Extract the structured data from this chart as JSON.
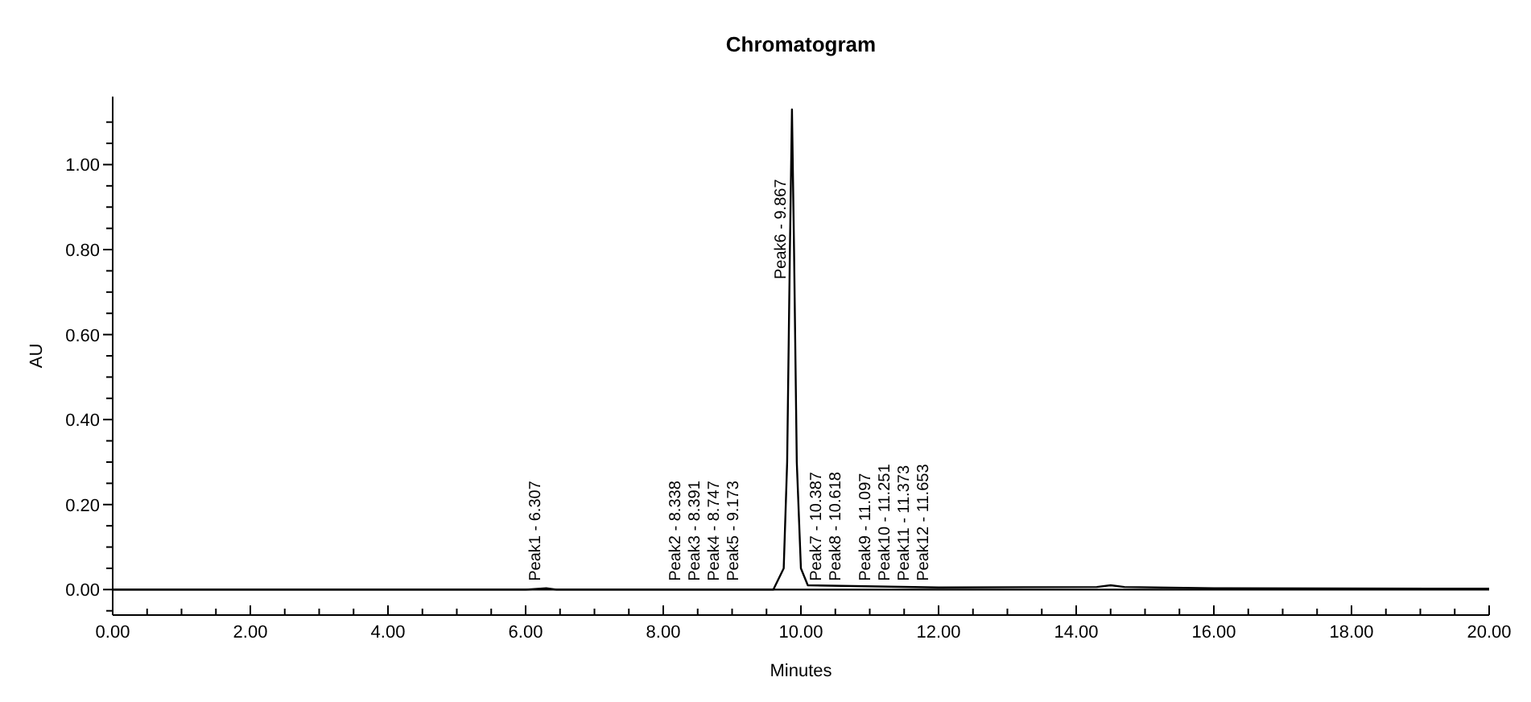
{
  "chart_data": {
    "type": "line",
    "title": "Chromatogram",
    "xlabel": "Minutes",
    "ylabel": "AU",
    "xlim": [
      0,
      20
    ],
    "ylim": [
      -0.06,
      1.16
    ],
    "xticks": [
      {
        "value": 0,
        "label": "0.00"
      },
      {
        "value": 0.5,
        "label": null
      },
      {
        "value": 1,
        "label": null
      },
      {
        "value": 1.5,
        "label": null
      },
      {
        "value": 2,
        "label": "2.00"
      },
      {
        "value": 2.5,
        "label": null
      },
      {
        "value": 3,
        "label": null
      },
      {
        "value": 3.5,
        "label": null
      },
      {
        "value": 4,
        "label": "4.00"
      },
      {
        "value": 4.5,
        "label": null
      },
      {
        "value": 5,
        "label": null
      },
      {
        "value": 5.5,
        "label": null
      },
      {
        "value": 6,
        "label": "6.00"
      },
      {
        "value": 6.5,
        "label": null
      },
      {
        "value": 7,
        "label": null
      },
      {
        "value": 7.5,
        "label": null
      },
      {
        "value": 8,
        "label": "8.00"
      },
      {
        "value": 8.5,
        "label": null
      },
      {
        "value": 9,
        "label": null
      },
      {
        "value": 9.5,
        "label": null
      },
      {
        "value": 10,
        "label": "10.00"
      },
      {
        "value": 10.5,
        "label": null
      },
      {
        "value": 11,
        "label": null
      },
      {
        "value": 11.5,
        "label": null
      },
      {
        "value": 12,
        "label": "12.00"
      },
      {
        "value": 12.5,
        "label": null
      },
      {
        "value": 13,
        "label": null
      },
      {
        "value": 13.5,
        "label": null
      },
      {
        "value": 14,
        "label": "14.00"
      },
      {
        "value": 14.5,
        "label": null
      },
      {
        "value": 15,
        "label": null
      },
      {
        "value": 15.5,
        "label": null
      },
      {
        "value": 16,
        "label": "16.00"
      },
      {
        "value": 16.5,
        "label": null
      },
      {
        "value": 17,
        "label": null
      },
      {
        "value": 17.5,
        "label": null
      },
      {
        "value": 18,
        "label": "18.00"
      },
      {
        "value": 18.5,
        "label": null
      },
      {
        "value": 19,
        "label": null
      },
      {
        "value": 19.5,
        "label": null
      },
      {
        "value": 20,
        "label": "20.00"
      }
    ],
    "yticks": [
      {
        "value": -0.05,
        "label": null
      },
      {
        "value": 0,
        "label": "0.00"
      },
      {
        "value": 0.05,
        "label": null
      },
      {
        "value": 0.1,
        "label": null
      },
      {
        "value": 0.15,
        "label": null
      },
      {
        "value": 0.2,
        "label": "0.20"
      },
      {
        "value": 0.25,
        "label": null
      },
      {
        "value": 0.3,
        "label": null
      },
      {
        "value": 0.35,
        "label": null
      },
      {
        "value": 0.4,
        "label": "0.40"
      },
      {
        "value": 0.45,
        "label": null
      },
      {
        "value": 0.5,
        "label": null
      },
      {
        "value": 0.55,
        "label": null
      },
      {
        "value": 0.6,
        "label": "0.60"
      },
      {
        "value": 0.65,
        "label": null
      },
      {
        "value": 0.7,
        "label": null
      },
      {
        "value": 0.75,
        "label": null
      },
      {
        "value": 0.8,
        "label": "0.80"
      },
      {
        "value": 0.85,
        "label": null
      },
      {
        "value": 0.9,
        "label": null
      },
      {
        "value": 0.95,
        "label": null
      },
      {
        "value": 1,
        "label": "1.00"
      },
      {
        "value": 1.05,
        "label": null
      },
      {
        "value": 1.1,
        "label": null
      }
    ],
    "x": [
      0,
      6.0,
      6.3,
      6.45,
      9.6,
      9.75,
      9.8,
      9.84,
      9.87,
      9.9,
      9.94,
      10.0,
      10.1,
      12.0,
      14.3,
      14.5,
      14.7,
      16.0,
      20.0
    ],
    "series": [
      {
        "color": "#000000",
        "values": [
          0,
          0,
          0.003,
          0,
          0,
          0.05,
          0.3,
          0.8,
          1.13,
          0.8,
          0.3,
          0.05,
          0.01,
          0.005,
          0.006,
          0.01,
          0.006,
          0.003,
          0.002
        ]
      }
    ],
    "ref_lines": [
      {
        "axis": "y",
        "value": 0,
        "color": "#000000"
      }
    ],
    "annotations": [
      {
        "text": "Peak1 - 6.307",
        "x": 6.307,
        "y": 0.02
      },
      {
        "text": "Peak2 - 8.338",
        "x": 8.338,
        "y": 0.02
      },
      {
        "text": "Peak3 - 8.391",
        "x": 8.391,
        "y": 0.02
      },
      {
        "text": "Peak4 - 8.747",
        "x": 8.747,
        "y": 0.02
      },
      {
        "text": "Peak5 - 9.173",
        "x": 9.173,
        "y": 0.02
      },
      {
        "text": "Peak6 - 9.867",
        "x": 9.867,
        "y": 0.73
      },
      {
        "text": "Peak7 - 10.387",
        "x": 10.387,
        "y": 0.02
      },
      {
        "text": "Peak8 - 10.618",
        "x": 10.618,
        "y": 0.02
      },
      {
        "text": "Peak9 - 11.097",
        "x": 11.097,
        "y": 0.02
      },
      {
        "text": "Peak10 - 11.251",
        "x": 11.251,
        "y": 0.02
      },
      {
        "text": "Peak11 - 11.373",
        "x": 11.373,
        "y": 0.02
      },
      {
        "text": "Peak12 - 11.653",
        "x": 11.653,
        "y": 0.02
      }
    ]
  }
}
